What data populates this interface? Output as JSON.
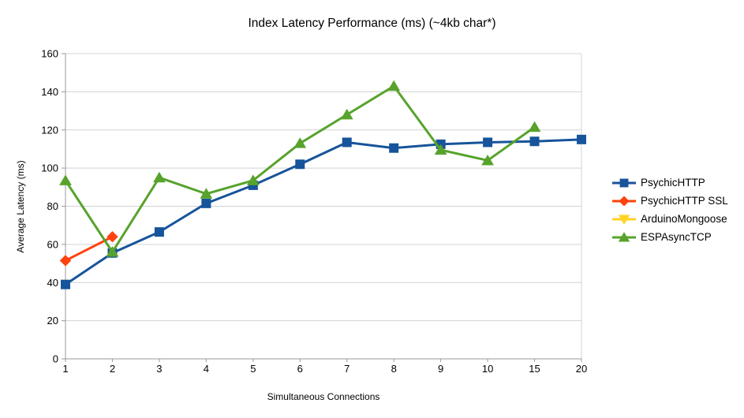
{
  "page": {
    "background": "#ffffff"
  },
  "chart_data": {
    "type": "line",
    "title": "Index Latency Performance (ms) (~4kb char*)",
    "xlabel": "Simultaneous Connections",
    "ylabel": "Average Latency (ms)",
    "categories": [
      "1",
      "2",
      "3",
      "4",
      "5",
      "6",
      "7",
      "8",
      "9",
      "10",
      "15",
      "20"
    ],
    "ylim": [
      0,
      160
    ],
    "ytick_step": 20,
    "grid": true,
    "legend_position": "right",
    "axis_color": "#999999",
    "grid_color": "#d3d3d3",
    "text_color": "#000000",
    "series": [
      {
        "name": "PsychicHTTP",
        "color": "#17549B",
        "marker": "square",
        "values": [
          39,
          55.5,
          66.5,
          81.5,
          91,
          102,
          113.5,
          110.5,
          112.5,
          113.5,
          114,
          115
        ]
      },
      {
        "name": "PsychicHTTP SSL",
        "color": "#FF420E",
        "marker": "diamond",
        "values": [
          51.5,
          64,
          null,
          null,
          null,
          null,
          null,
          null,
          null,
          null,
          null,
          null
        ]
      },
      {
        "name": "ArduinoMongoose",
        "color": "#FFD320",
        "marker": "triangle-down",
        "values": [
          null,
          null,
          null,
          null,
          null,
          null,
          null,
          null,
          null,
          null,
          null,
          null
        ]
      },
      {
        "name": "ESPAsyncTCP",
        "color": "#57A32C",
        "marker": "triangle-up",
        "values": [
          93.5,
          56,
          95,
          86.5,
          93.5,
          113,
          128,
          143,
          109.5,
          104,
          121.5,
          null
        ]
      }
    ]
  }
}
